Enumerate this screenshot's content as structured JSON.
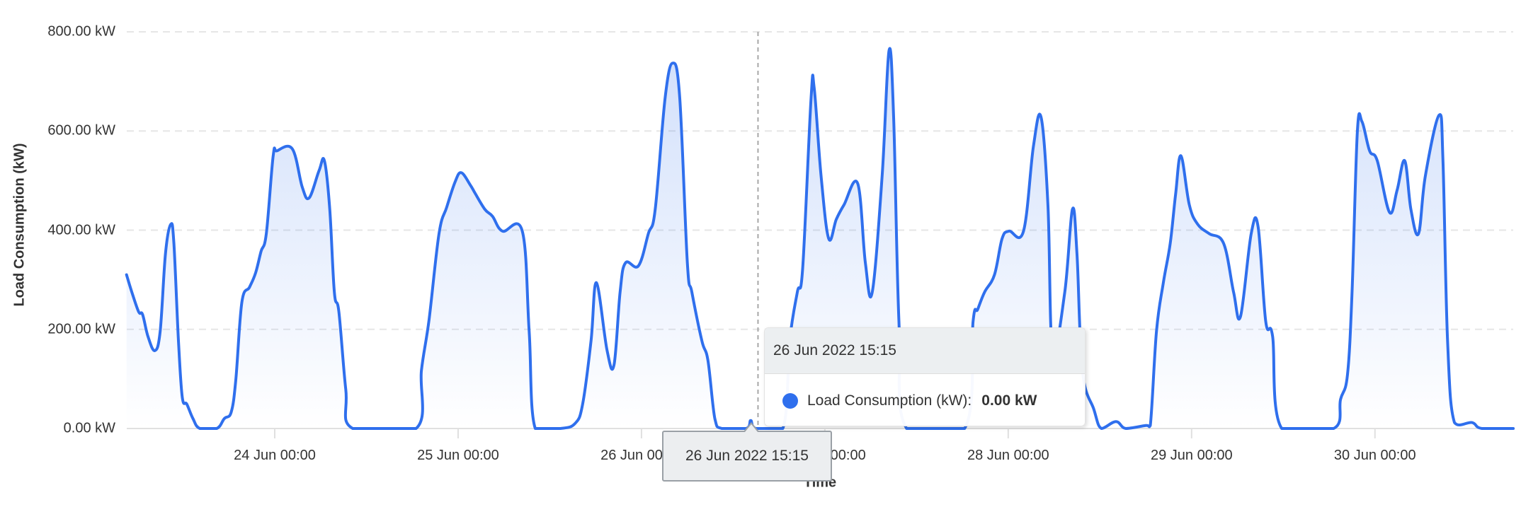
{
  "chart_data": {
    "type": "area",
    "title": "",
    "xlabel": "Time",
    "ylabel": "Load Consumption (kW)",
    "ylim": [
      0,
      800
    ],
    "y_ticks": [
      "0.00 kW",
      "200.00 kW",
      "400.00 kW",
      "600.00 kW",
      "800.00 kW"
    ],
    "y_tick_values": [
      0,
      200,
      400,
      600,
      800
    ],
    "x_ticks": [
      "24 Jun 00:00",
      "25 Jun 00:00",
      "26 Jun 00:00",
      "27 Jun 00:00",
      "28 Jun 00:00",
      "29 Jun 00:00",
      "30 Jun 00:00"
    ],
    "x_tick_hours": [
      0,
      24,
      48,
      72,
      96,
      120,
      144
    ],
    "x_unit": "hours since 24 Jun 2022 00:00",
    "xlim_hours": [
      -19.4,
      162.1
    ],
    "grid": "horizontal dashed",
    "legend": "none",
    "series": [
      {
        "name": "Load Consumption (kW)",
        "color": "#2f6fed",
        "points": [
          [
            -19.4,
            310
          ],
          [
            -18.7,
            275
          ],
          [
            -17.8,
            235
          ],
          [
            -17.3,
            230
          ],
          [
            -16.6,
            186
          ],
          [
            -15.7,
            157
          ],
          [
            -15.0,
            196
          ],
          [
            -14.3,
            353
          ],
          [
            -13.6,
            412
          ],
          [
            -13.2,
            373
          ],
          [
            -12.6,
            177
          ],
          [
            -12.1,
            63
          ],
          [
            -11.5,
            49
          ],
          [
            -10.7,
            20
          ],
          [
            -9.8,
            0
          ],
          [
            -7.6,
            0
          ],
          [
            -6.6,
            20
          ],
          [
            -5.7,
            33
          ],
          [
            -5.1,
            98
          ],
          [
            -4.3,
            255
          ],
          [
            -3.3,
            285
          ],
          [
            -2.5,
            314
          ],
          [
            -1.8,
            357
          ],
          [
            -1.1,
            393
          ],
          [
            -0.2,
            550
          ],
          [
            0.3,
            560
          ],
          [
            2.3,
            564
          ],
          [
            3.6,
            487
          ],
          [
            4.5,
            465
          ],
          [
            5.8,
            520
          ],
          [
            6.5,
            540
          ],
          [
            7.2,
            442
          ],
          [
            7.8,
            275
          ],
          [
            8.4,
            235
          ],
          [
            9.3,
            79
          ],
          [
            10.2,
            0
          ],
          [
            18.5,
            0
          ],
          [
            19.2,
            118
          ],
          [
            20.2,
            220
          ],
          [
            21.5,
            393
          ],
          [
            22.5,
            446
          ],
          [
            23.6,
            497
          ],
          [
            24.4,
            516
          ],
          [
            25.6,
            491
          ],
          [
            26.2,
            475
          ],
          [
            27.5,
            442
          ],
          [
            28.5,
            428
          ],
          [
            29.8,
            398
          ],
          [
            32.4,
            398
          ],
          [
            33.3,
            196
          ],
          [
            34.1,
            0
          ],
          [
            37.4,
            0
          ],
          [
            39.3,
            10
          ],
          [
            40.3,
            49
          ],
          [
            41.4,
            177
          ],
          [
            42.1,
            294
          ],
          [
            43.5,
            157
          ],
          [
            44.4,
            128
          ],
          [
            45.2,
            275
          ],
          [
            45.9,
            334
          ],
          [
            47.6,
            328
          ],
          [
            48.9,
            393
          ],
          [
            49.8,
            442
          ],
          [
            51.1,
            668
          ],
          [
            52.1,
            737
          ],
          [
            53.0,
            668
          ],
          [
            54.0,
            334
          ],
          [
            54.6,
            275
          ],
          [
            55.9,
            177
          ],
          [
            56.7,
            137
          ],
          [
            57.6,
            20
          ],
          [
            58.5,
            0
          ],
          [
            61.7,
            0
          ],
          [
            62.3,
            16
          ],
          [
            63.0,
            0
          ],
          [
            66.5,
            0
          ],
          [
            67.4,
            177
          ],
          [
            68.4,
            275
          ],
          [
            69.1,
            324
          ],
          [
            70.2,
            668
          ],
          [
            70.6,
            687
          ],
          [
            71.5,
            510
          ],
          [
            72.5,
            383
          ],
          [
            73.5,
            422
          ],
          [
            74.5,
            451
          ],
          [
            76.3,
            494
          ],
          [
            77.3,
            334
          ],
          [
            78.2,
            275
          ],
          [
            79.5,
            510
          ],
          [
            80.4,
            762
          ],
          [
            81.0,
            628
          ],
          [
            81.7,
            216
          ],
          [
            82.7,
            0
          ],
          [
            90.3,
            0
          ],
          [
            91.4,
            216
          ],
          [
            92.0,
            240
          ],
          [
            92.9,
            275
          ],
          [
            94.2,
            310
          ],
          [
            95.2,
            383
          ],
          [
            96.1,
            398
          ],
          [
            98.0,
            398
          ],
          [
            99.3,
            569
          ],
          [
            100.3,
            628
          ],
          [
            101.2,
            451
          ],
          [
            101.8,
            157
          ],
          [
            103.4,
            275
          ],
          [
            104.4,
            442
          ],
          [
            105.0,
            353
          ],
          [
            105.7,
            118
          ],
          [
            107.2,
            39
          ],
          [
            108.2,
            0
          ],
          [
            110.1,
            14
          ],
          [
            111.4,
            0
          ],
          [
            114.0,
            6
          ],
          [
            114.6,
            6
          ],
          [
            115.4,
            196
          ],
          [
            116.3,
            294
          ],
          [
            117.2,
            373
          ],
          [
            117.9,
            471
          ],
          [
            118.6,
            550
          ],
          [
            119.7,
            451
          ],
          [
            120.8,
            412
          ],
          [
            122.3,
            393
          ],
          [
            124.2,
            373
          ],
          [
            125.5,
            275
          ],
          [
            126.4,
            226
          ],
          [
            127.8,
            393
          ],
          [
            128.7,
            407
          ],
          [
            129.7,
            216
          ],
          [
            130.6,
            186
          ],
          [
            131.8,
            0
          ],
          [
            138.6,
            0
          ],
          [
            139.5,
            59
          ],
          [
            140.4,
            108
          ],
          [
            141.0,
            275
          ],
          [
            141.7,
            599
          ],
          [
            142.3,
            619
          ],
          [
            143.3,
            560
          ],
          [
            144.3,
            540
          ],
          [
            145.9,
            436
          ],
          [
            146.9,
            481
          ],
          [
            147.9,
            540
          ],
          [
            148.7,
            442
          ],
          [
            149.7,
            393
          ],
          [
            150.6,
            510
          ],
          [
            152.4,
            632
          ],
          [
            152.9,
            540
          ],
          [
            153.5,
            177
          ],
          [
            154.4,
            12
          ],
          [
            156.7,
            12
          ],
          [
            158.0,
            0
          ],
          [
            162.1,
            0
          ]
        ]
      }
    ],
    "crosshair_hour": 63.25,
    "hover_point": {
      "time": "26 Jun 2022 15:15",
      "value": 0.0
    }
  },
  "axes": {
    "y_title": "Load Consumption (kW)",
    "x_title": "Time"
  },
  "x_axis_tooltip": {
    "label": "26 Jun 2022 15:15"
  },
  "tooltip": {
    "header": "26 Jun 2022 15:15",
    "series_label": "Load Consumption (kW):",
    "value": "0.00 kW",
    "marker_color": "#2f6fed"
  }
}
